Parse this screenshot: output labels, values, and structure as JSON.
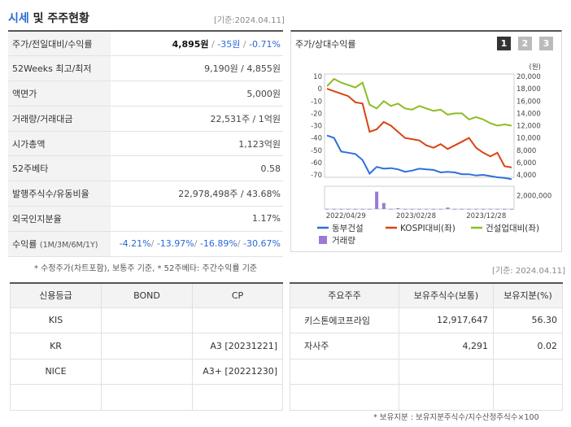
{
  "header": {
    "title_accent": "시세",
    "title_rest": " 및 주주현황",
    "basis": "[기준:2024.04.11]"
  },
  "quote": [
    {
      "label": "주가/전일대비/수익률",
      "price": "4,895원",
      "change": "-35원",
      "rate": "-0.71%"
    },
    {
      "label": "52Weeks 최고/최저",
      "value": "9,190원 / 4,855원"
    },
    {
      "label": "액면가",
      "value": "5,000원"
    },
    {
      "label": "거래량/거래대금",
      "value": "22,531주 / 1억원"
    },
    {
      "label": "시가총액",
      "value": "1,123억원"
    },
    {
      "label": "52주베타",
      "value": "0.58"
    },
    {
      "label": "발행주식수/유동비율",
      "value": "22,978,498주 / 43.68%"
    },
    {
      "label": "외국인지분율",
      "value": "1.17%"
    },
    {
      "label": "수익률",
      "label_sub": "(1M/3M/6M/1Y)",
      "r1": "-4.21%",
      "r2": "-13.97%",
      "r3": "-16.89%",
      "r4": "-30.67%"
    }
  ],
  "quote_note": "* 수정주가(차트포함), 보통주 기준, * 52주베타: 주간수익률 기준",
  "chart": {
    "title": "주가/상대수익률",
    "pages": [
      "1",
      "2",
      "3"
    ],
    "unit": "(원)",
    "legend": [
      "동부건설",
      "KOSPI대비(좌)",
      "건설업대비(좌)",
      "거래량"
    ],
    "colors": {
      "stock": "#2e6fdc",
      "kospi": "#d94412",
      "sector": "#8cbd22",
      "volume": "#9b7ad6"
    }
  },
  "chart_data": {
    "type": "line",
    "x_ticks": [
      "2022/04/29",
      "2023/02/28",
      "2023/12/28"
    ],
    "y_left": {
      "ticks": [
        "10",
        "0",
        "-10",
        "-20",
        "-30",
        "-40",
        "-50",
        "-60",
        "-70"
      ],
      "range": [
        -70,
        10
      ]
    },
    "y_right": {
      "ticks": [
        "20,000",
        "18,000",
        "16,000",
        "14,000",
        "12,000",
        "10,000",
        "8,000",
        "6,000",
        "4,000"
      ],
      "range": [
        4000,
        20000
      ]
    },
    "volume_axis": {
      "ticks": [
        "2,000,000"
      ],
      "range": [
        0,
        2800000
      ]
    },
    "series": [
      {
        "name": "동부건설",
        "axis": "right",
        "values": [
          10400,
          10000,
          7800,
          7600,
          7400,
          6400,
          4200,
          5300,
          5000,
          5100,
          4900,
          4500,
          4700,
          5000,
          4900,
          4800,
          4400,
          4500,
          4400,
          4100,
          4100,
          3900,
          4000,
          3800,
          3600,
          3500,
          3300
        ]
      },
      {
        "name": "KOSPI대비(좌)",
        "axis": "left",
        "values": [
          0,
          -2,
          -4,
          -6,
          -11,
          -12,
          -35,
          -33,
          -27,
          -30,
          -35,
          -40,
          -41,
          -42,
          -46,
          -48,
          -45,
          -49,
          -46,
          -43,
          -40,
          -48,
          -52,
          -55,
          -52,
          -63,
          -64
        ]
      },
      {
        "name": "건설업대비(좌)",
        "axis": "left",
        "values": [
          2,
          8,
          5,
          3,
          1,
          5,
          -13,
          -16,
          -10,
          -14,
          -12,
          -16,
          -17,
          -14,
          -16,
          -18,
          -17,
          -21,
          -20,
          -20,
          -25,
          -23,
          -25,
          -28,
          -30,
          -29,
          -30
        ]
      },
      {
        "name": "거래량",
        "axis": "volume",
        "values": [
          20000,
          15000,
          15000,
          25000,
          12000,
          18000,
          20000,
          2600000,
          900000,
          22000,
          130000,
          12000,
          14000,
          15000,
          20000,
          12000,
          15000,
          220000,
          18000,
          16000,
          15000,
          13000,
          12000,
          15000,
          18000,
          12000,
          12000
        ]
      }
    ]
  },
  "credit": {
    "headers": [
      "신용등급",
      "BOND",
      "CP"
    ],
    "rows": [
      {
        "agency": "KIS",
        "bond": "",
        "cp": ""
      },
      {
        "agency": "KR",
        "bond": "",
        "cp": "A3  [20231221]"
      },
      {
        "agency": "NICE",
        "bond": "",
        "cp": "A3+  [20221230]"
      },
      {
        "agency": "",
        "bond": "",
        "cp": ""
      }
    ]
  },
  "holders": {
    "basis": "[기준: 2024.04.11]",
    "headers": [
      "주요주주",
      "보유주식수(보통)",
      "보유지분(%)"
    ],
    "rows": [
      {
        "name": "키스톤에코프라임",
        "shares": "12,917,647",
        "pct": "56.30"
      },
      {
        "name": "자사주",
        "shares": "4,291",
        "pct": "0.02"
      },
      {
        "name": "",
        "shares": "",
        "pct": ""
      },
      {
        "name": "",
        "shares": "",
        "pct": ""
      }
    ],
    "note": "* 보유지분 : 보유지분주식수/지수산정주식수×100"
  }
}
